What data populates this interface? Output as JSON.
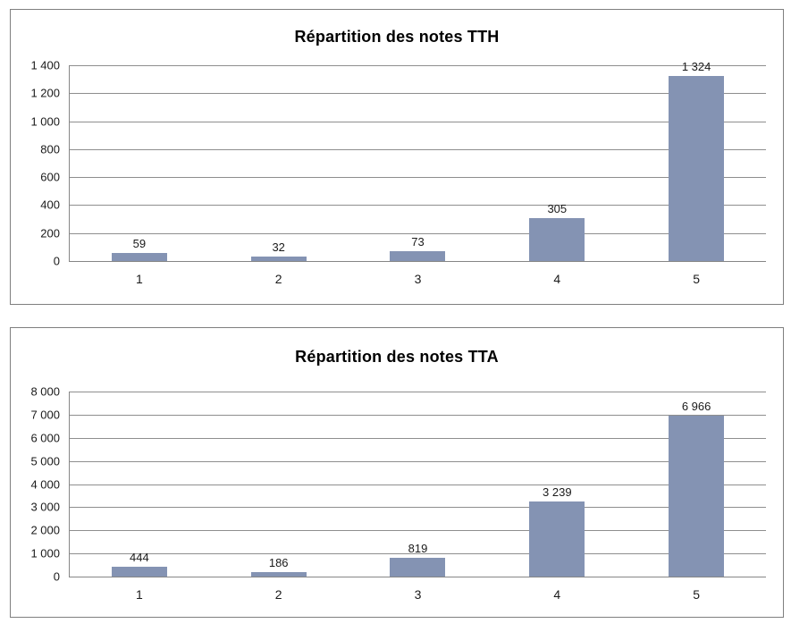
{
  "colors": {
    "bar_fill": "#8493b3",
    "gridline": "#8e8e8e",
    "axis": "#868686",
    "panel_border": "#7f7f7f",
    "title_text": "#000000",
    "label_text": "#1a1a1a"
  },
  "chart_data": [
    {
      "type": "bar",
      "title": "Répartition des notes TTH",
      "categories": [
        "1",
        "2",
        "3",
        "4",
        "5"
      ],
      "values": [
        59,
        32,
        73,
        305,
        1324
      ],
      "value_labels": [
        "59",
        "32",
        "73",
        "305",
        "1 324"
      ],
      "xlabel": "",
      "ylabel": "",
      "ylim": [
        0,
        1400
      ],
      "ytick_step": 200,
      "ytick_labels": [
        "0",
        "200",
        "400",
        "600",
        "800",
        "1 000",
        "1 200",
        "1 400"
      ],
      "grid": true,
      "legend_position": "none"
    },
    {
      "type": "bar",
      "title": "Répartition des notes TTA",
      "categories": [
        "1",
        "2",
        "3",
        "4",
        "5"
      ],
      "values": [
        444,
        186,
        819,
        3239,
        6966
      ],
      "value_labels": [
        "444",
        "186",
        "819",
        "3 239",
        "6 966"
      ],
      "xlabel": "",
      "ylabel": "",
      "ylim": [
        0,
        8000
      ],
      "ytick_step": 1000,
      "ytick_labels": [
        "0",
        "1 000",
        "2 000",
        "3 000",
        "4 000",
        "5 000",
        "6 000",
        "7 000",
        "8 000"
      ],
      "grid": true,
      "legend_position": "none"
    }
  ]
}
